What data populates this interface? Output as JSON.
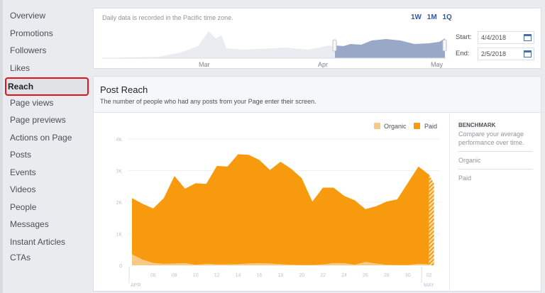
{
  "sidebar": {
    "items": [
      "Overview",
      "Promotions",
      "Followers",
      "Likes",
      "Reach",
      "Page views",
      "Page previews",
      "Actions on Page",
      "Posts",
      "Events",
      "Videos",
      "People",
      "Messages",
      "Instant Articles CTAs"
    ],
    "active": "Reach"
  },
  "range": {
    "note": "Daily data is recorded in the Pacific time zone.",
    "buttons": [
      "1W",
      "1M",
      "1Q"
    ],
    "months": [
      "Mar",
      "Apr",
      "May"
    ],
    "start_label": "Start:",
    "start_value": "4/4/2018",
    "end_label": "End:",
    "end_value": "2/5/2018"
  },
  "main": {
    "title": "Post Reach",
    "subtitle": "The number of people who had any posts from your Page enter their screen."
  },
  "benchmark": {
    "title": "BENCHMARK",
    "desc": "Compare your average performance over time.",
    "items": [
      "Organic",
      "Paid"
    ]
  },
  "colors": {
    "organic": "#f7c987",
    "paid": "#f79a0e",
    "accent": "#365899",
    "highlight": "#e0141e"
  },
  "chart_data": {
    "type": "area",
    "stacked": true,
    "x": [
      "Apr 04",
      "Apr 05",
      "Apr 06",
      "Apr 07",
      "Apr 08",
      "Apr 09",
      "Apr 10",
      "Apr 11",
      "Apr 12",
      "Apr 13",
      "Apr 14",
      "Apr 15",
      "Apr 16",
      "Apr 17",
      "Apr 18",
      "Apr 19",
      "Apr 20",
      "Apr 21",
      "Apr 22",
      "Apr 23",
      "Apr 24",
      "Apr 25",
      "Apr 26",
      "Apr 27",
      "Apr 28",
      "Apr 29",
      "Apr 30",
      "May 01",
      "May 02"
    ],
    "series": [
      {
        "name": "Organic",
        "values": [
          350,
          180,
          80,
          50,
          60,
          70,
          20,
          50,
          30,
          30,
          40,
          60,
          70,
          60,
          40,
          20,
          10,
          10,
          30,
          70,
          70,
          20,
          110,
          60,
          20,
          10,
          10,
          50,
          40
        ]
      },
      {
        "name": "Paid",
        "values": [
          1780,
          1770,
          1720,
          2080,
          2770,
          2360,
          2580,
          2530,
          3120,
          3100,
          3480,
          3440,
          3270,
          2960,
          3240,
          3040,
          2750,
          2010,
          2430,
          2390,
          2130,
          2040,
          1670,
          1810,
          2000,
          2080,
          2600,
          3080,
          2830
        ]
      }
    ],
    "ylim": [
      0,
      4000
    ],
    "yticks": [
      "0",
      "1K",
      "2K",
      "3K",
      "4K"
    ],
    "xticks": [
      "06",
      "08",
      "10",
      "12",
      "14",
      "16",
      "18",
      "20",
      "22",
      "24",
      "26",
      "28",
      "30",
      "02"
    ],
    "xtick_days": [
      6,
      8,
      10,
      12,
      14,
      16,
      18,
      20,
      22,
      24,
      26,
      28,
      30,
      32
    ],
    "month_labels": [
      "APR",
      "MAY"
    ],
    "grid": true,
    "legend": "top-right"
  }
}
